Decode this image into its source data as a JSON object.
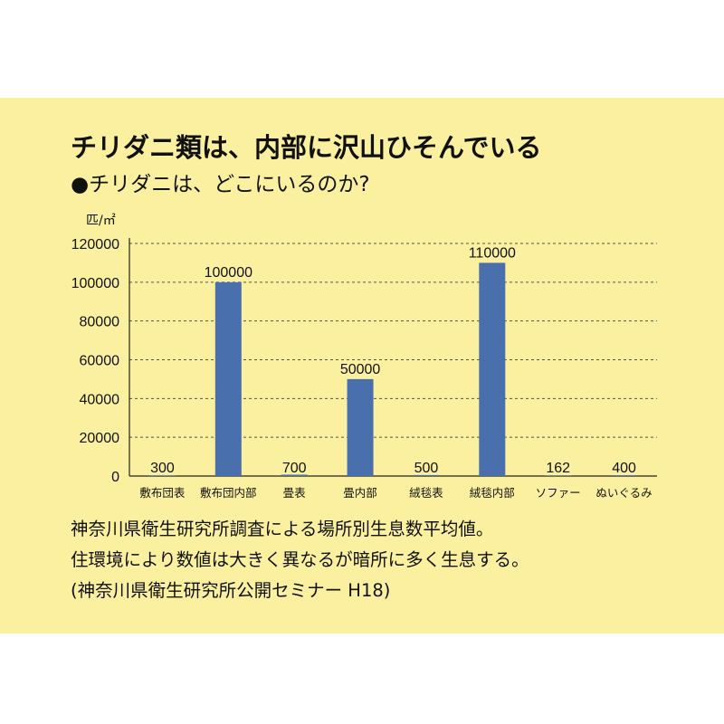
{
  "heading": {
    "title": "チリダニ類は、内部に沢山ひそんでいる",
    "subtitle": "●チリダニは、どこにいるのか?"
  },
  "chart_data": {
    "type": "bar",
    "unit_label": "匹/㎡",
    "categories": [
      "敷布団表",
      "敷布団内部",
      "畳表",
      "畳内部",
      "絨毯表",
      "絨毯内部",
      "ソファー",
      "ぬいぐるみ"
    ],
    "values": [
      300,
      100000,
      700,
      50000,
      500,
      110000,
      162,
      400
    ],
    "value_labels": [
      "300",
      "100000",
      "700",
      "50000",
      "500",
      "110000",
      "162",
      "400"
    ],
    "ylim": [
      0,
      120000
    ],
    "yticks": [
      0,
      20000,
      40000,
      60000,
      80000,
      100000,
      120000
    ],
    "ytick_labels": [
      "0",
      "20000",
      "40000",
      "60000",
      "80000",
      "100000",
      "120000"
    ],
    "grid": true,
    "bar_color": "#4a6fad"
  },
  "notes": {
    "line1": "神奈川県衛生研究所調査による場所別生息数平均値。",
    "line2": "住環境により数値は大きく異なるが暗所に多く生息する。",
    "line3": "(神奈川県衛生研究所公開セミナー H18)"
  }
}
